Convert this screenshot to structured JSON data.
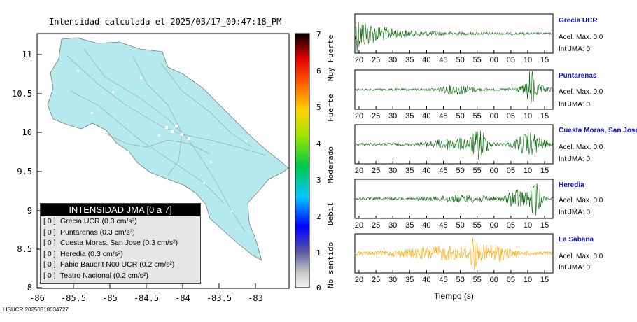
{
  "map": {
    "title": "Intensidad calculada el 2025/03/17_09:47:18_PM",
    "x_ticks": [
      "-86",
      "-85.5",
      "-85",
      "-84.5",
      "-84",
      "-83.5",
      "-83"
    ],
    "y_ticks": [
      "11",
      "10.5",
      "10",
      "9.5",
      "9",
      "8.5",
      "8"
    ],
    "land_color": "#b4eaee",
    "footer_id": "LISUCR 20250318034727"
  },
  "scale": {
    "numbers": [
      "0",
      "1",
      "2",
      "3",
      "4",
      "5",
      "6",
      "7"
    ],
    "categories": [
      "No sentido",
      "Debil",
      "Moderado",
      "Fuerte",
      "Muy Fuerte"
    ]
  },
  "legend": {
    "title": "INTENSIDAD JMA [0 a 7]",
    "items": [
      {
        "level": "[ 0 ]",
        "text": "Grecia UCR (0.3 cm/s²)"
      },
      {
        "level": "[ 0 ]",
        "text": "Puntarenas (0.3 cm/s²)"
      },
      {
        "level": "[ 0 ]",
        "text": "Cuesta Moras. San Jose (0.3 cm/s²)"
      },
      {
        "level": "[ 0 ]",
        "text": "Heredia (0.3 cm/s²)"
      },
      {
        "level": "[ 0 ]",
        "text": "Fabio Baudrit N00 UCR (0.2 cm/s²)"
      },
      {
        "level": "[ 0 ]",
        "text": "Teatro Nacional (0.2 cm/s²)"
      }
    ]
  },
  "stations": [
    {
      "name": "Grecia UCR",
      "acc": "Acel. Max. 0.0",
      "jma": "Int JMA: 0",
      "color": "#006400"
    },
    {
      "name": "Puntarenas",
      "acc": "Acel. Max. 0.0",
      "jma": "Int JMA: 0",
      "color": "#006400"
    },
    {
      "name": "Cuesta Moras, San Jose",
      "acc": "Acel. Max. 0.0",
      "jma": "Int JMA: 0",
      "color": "#006400"
    },
    {
      "name": "Heredia",
      "acc": "Acel. Max. 0.0",
      "jma": "Int JMA: 0",
      "color": "#006400"
    },
    {
      "name": "La Sabana",
      "acc": "Acel. Max. 0.0",
      "jma": "Int JMA: 0",
      "color": "#ffa500"
    }
  ],
  "chart_data": {
    "type": "line",
    "xlabel": "Tiempo (s)",
    "x_ticks": [
      "20",
      "25",
      "30",
      "35",
      "40",
      "45",
      "50",
      "55",
      "00",
      "05",
      "10",
      "15"
    ],
    "panels": [
      "Grecia UCR",
      "Puntarenas",
      "Cuesta Moras, San Jose",
      "Heredia",
      "La Sabana"
    ]
  }
}
